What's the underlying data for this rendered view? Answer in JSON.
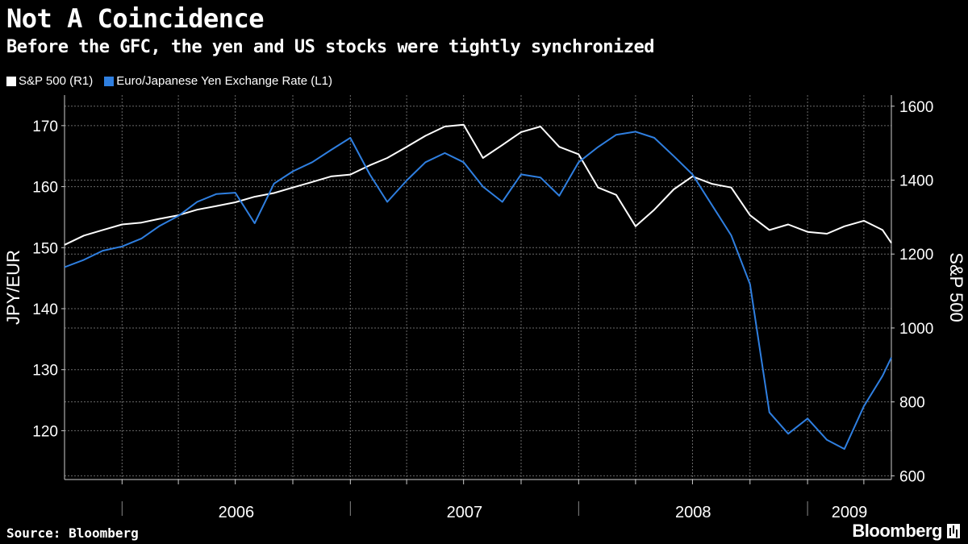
{
  "chart_data": {
    "type": "line",
    "title": "Not A Coincidence",
    "subtitle": "Before the GFC, the yen and US stocks were tightly synchronized",
    "source": "Source: Bloomberg",
    "brand": "Bloomberg",
    "x_axis": {
      "range": [
        "2005-10-01",
        "2009-05-15"
      ],
      "year_labels": [
        "2006",
        "2007",
        "2008",
        "2009"
      ]
    },
    "y_left": {
      "label": "JPY/EUR",
      "range": [
        112,
        175
      ],
      "ticks": [
        120,
        130,
        140,
        150,
        160,
        170
      ]
    },
    "y_right": {
      "label": "S&P 500",
      "range": [
        590,
        1630
      ],
      "ticks": [
        600,
        800,
        1000,
        1200,
        1400,
        1600
      ]
    },
    "grid": true,
    "legend_position": "top-left",
    "colors": {
      "sp500": "#ffffff",
      "eurjpy": "#2f7fe0",
      "grid": "#6a6a6a"
    },
    "series": [
      {
        "name": "S&P  500 (R1)",
        "axis": "right",
        "points": [
          [
            "2005-10-01",
            1225
          ],
          [
            "2005-11-01",
            1250
          ],
          [
            "2005-12-01",
            1265
          ],
          [
            "2006-01-01",
            1280
          ],
          [
            "2006-02-01",
            1285
          ],
          [
            "2006-03-01",
            1295
          ],
          [
            "2006-04-01",
            1305
          ],
          [
            "2006-05-01",
            1320
          ],
          [
            "2006-06-01",
            1330
          ],
          [
            "2006-07-01",
            1340
          ],
          [
            "2006-08-01",
            1355
          ],
          [
            "2006-09-01",
            1365
          ],
          [
            "2006-10-01",
            1380
          ],
          [
            "2006-11-01",
            1395
          ],
          [
            "2006-12-01",
            1410
          ],
          [
            "2007-01-01",
            1415
          ],
          [
            "2007-02-01",
            1440
          ],
          [
            "2007-03-01",
            1460
          ],
          [
            "2007-04-01",
            1490
          ],
          [
            "2007-05-01",
            1520
          ],
          [
            "2007-06-01",
            1545
          ],
          [
            "2007-07-01",
            1550
          ],
          [
            "2007-08-01",
            1460
          ],
          [
            "2007-09-01",
            1495
          ],
          [
            "2007-10-01",
            1530
          ],
          [
            "2007-11-01",
            1545
          ],
          [
            "2007-12-01",
            1490
          ],
          [
            "2008-01-01",
            1470
          ],
          [
            "2008-02-01",
            1380
          ],
          [
            "2008-03-01",
            1360
          ],
          [
            "2008-04-01",
            1275
          ],
          [
            "2008-05-01",
            1320
          ],
          [
            "2008-06-01",
            1375
          ],
          [
            "2008-07-01",
            1410
          ],
          [
            "2008-08-01",
            1390
          ],
          [
            "2008-09-01",
            1380
          ],
          [
            "2008-10-01",
            1305
          ],
          [
            "2008-11-01",
            1265
          ],
          [
            "2008-12-01",
            1280
          ],
          [
            "2009-01-01",
            1260
          ],
          [
            "2009-02-01",
            1255
          ],
          [
            "2009-03-01",
            1275
          ],
          [
            "2009-04-01",
            1290
          ],
          [
            "2009-05-01",
            1265
          ],
          [
            "2009-05-15",
            1230
          ]
        ]
      },
      {
        "name": "Euro/Japanese Yen Exchange Rate (L1)",
        "axis": "left",
        "points": [
          [
            "2005-10-01",
            146.8
          ],
          [
            "2005-11-01",
            148.0
          ],
          [
            "2005-12-01",
            149.5
          ],
          [
            "2006-01-01",
            150.2
          ],
          [
            "2006-02-01",
            151.5
          ],
          [
            "2006-03-01",
            153.5
          ],
          [
            "2006-04-01",
            155.2
          ],
          [
            "2006-05-01",
            157.5
          ],
          [
            "2006-06-01",
            158.8
          ],
          [
            "2006-07-01",
            159.0
          ],
          [
            "2006-08-01",
            154.0
          ],
          [
            "2006-09-01",
            160.5
          ],
          [
            "2006-10-01",
            162.5
          ],
          [
            "2006-11-01",
            164.0
          ],
          [
            "2006-12-01",
            166.0
          ],
          [
            "2007-01-01",
            168.0
          ],
          [
            "2007-02-01",
            162.0
          ],
          [
            "2007-03-01",
            157.5
          ],
          [
            "2007-04-01",
            161.0
          ],
          [
            "2007-05-01",
            164.0
          ],
          [
            "2007-06-01",
            165.5
          ],
          [
            "2007-07-01",
            164.0
          ],
          [
            "2007-08-01",
            160.0
          ],
          [
            "2007-09-01",
            157.5
          ],
          [
            "2007-10-01",
            162.0
          ],
          [
            "2007-11-01",
            161.5
          ],
          [
            "2007-12-01",
            158.5
          ],
          [
            "2008-01-01",
            164.0
          ],
          [
            "2008-02-01",
            166.5
          ],
          [
            "2008-03-01",
            168.5
          ],
          [
            "2008-04-01",
            169.0
          ],
          [
            "2008-05-01",
            168.0
          ],
          [
            "2008-06-01",
            165.0
          ],
          [
            "2008-07-01",
            162.0
          ],
          [
            "2008-08-01",
            157.0
          ],
          [
            "2008-09-01",
            152.0
          ],
          [
            "2008-10-01",
            144.0
          ],
          [
            "2008-11-01",
            123.0
          ],
          [
            "2008-12-01",
            119.5
          ],
          [
            "2009-01-01",
            122.0
          ],
          [
            "2009-02-01",
            118.5
          ],
          [
            "2009-03-01",
            117.0
          ],
          [
            "2009-04-01",
            124.0
          ],
          [
            "2009-05-01",
            129.0
          ],
          [
            "2009-05-15",
            132.0
          ]
        ]
      }
    ]
  }
}
